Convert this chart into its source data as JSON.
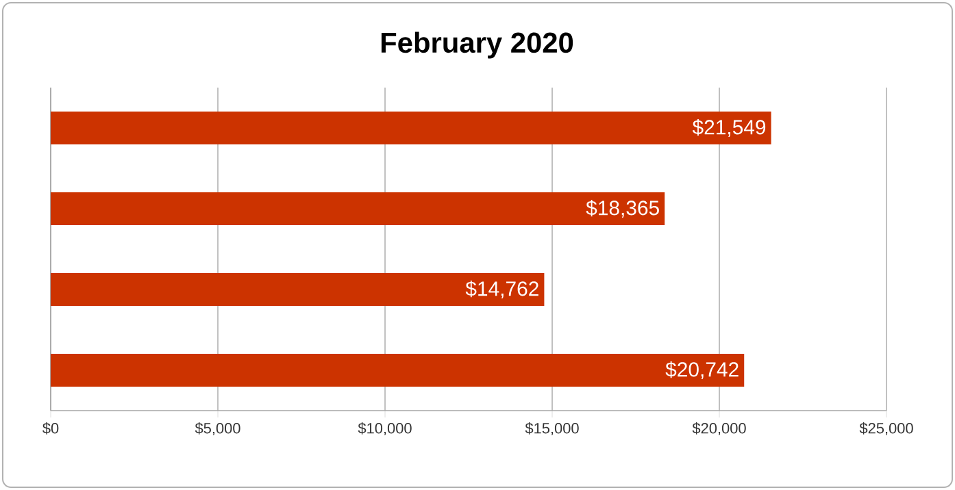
{
  "chart_data": {
    "type": "bar",
    "orientation": "horizontal",
    "title": "February 2020",
    "categories": [
      null,
      null,
      null,
      null
    ],
    "values": [
      21549,
      18365,
      14762,
      20742
    ],
    "value_labels": [
      "$21,549",
      "$18,365",
      "$14,762",
      "$20,742"
    ],
    "color": "#cc3300",
    "xlim": [
      0,
      25000
    ],
    "xticks": [
      {
        "value": 0,
        "label": "$0"
      },
      {
        "value": 5000,
        "label": "$5,000"
      },
      {
        "value": 10000,
        "label": "$10,000"
      },
      {
        "value": 15000,
        "label": "$15,000"
      },
      {
        "value": 20000,
        "label": "$20,000"
      },
      {
        "value": 25000,
        "label": "$25,000"
      }
    ],
    "grid": "x"
  }
}
